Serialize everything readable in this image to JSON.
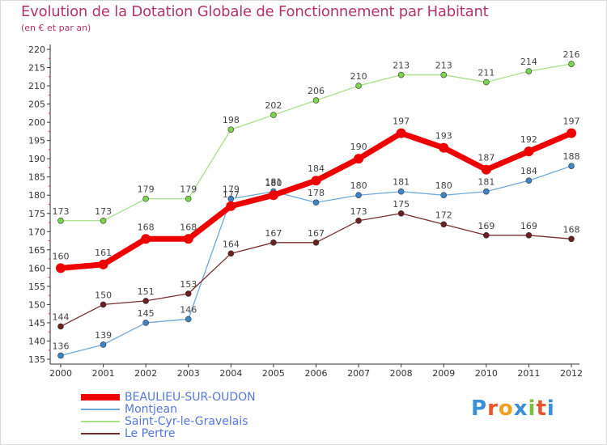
{
  "header": {
    "title": "Evolution de la Dotation Globale de Fonctionnement par Habitant",
    "subtitle": "(en € et par an)"
  },
  "logo": {
    "text": "Proxiti",
    "letters": [
      "P",
      "r",
      "o",
      "x",
      "i",
      "t",
      "i"
    ],
    "colors": [
      "#3b8fd6",
      "#e8552a",
      "#f0a01e",
      "#3b8fd6",
      "#7abf3a",
      "#e8552a",
      "#3b8fd6"
    ]
  },
  "chart_data": {
    "type": "line",
    "title": "Evolution de la Dotation Globale de Fonctionnement par Habitant",
    "subtitle": "(en € et par an)",
    "x": [
      "2000",
      "2001",
      "2002",
      "2003",
      "2004",
      "2005",
      "2006",
      "2007",
      "2008",
      "2009",
      "2010",
      "2011",
      "2012"
    ],
    "ylim": [
      135,
      220
    ],
    "yticks": [
      135,
      140,
      145,
      150,
      155,
      160,
      165,
      170,
      175,
      180,
      185,
      190,
      195,
      200,
      205,
      210,
      215,
      220
    ],
    "grid": false,
    "legend_position": "bottom-left",
    "series": [
      {
        "name": "BEAULIEU-SUR-OUDON",
        "color": "#ee0000",
        "marker": "#ee0000",
        "width": 7,
        "radius": 6,
        "values": [
          160,
          161,
          168,
          168,
          177,
          180,
          184,
          190,
          197,
          193,
          187,
          192,
          197
        ]
      },
      {
        "name": "Montjean",
        "color": "#6fa8dc",
        "marker": "#3d85c6",
        "width": 1.3,
        "radius": 3.5,
        "values": [
          136,
          139,
          145,
          146,
          179,
          181,
          178,
          180,
          181,
          180,
          181,
          184,
          188
        ]
      },
      {
        "name": "Saint-Cyr-le-Gravelais",
        "color": "#a8e08a",
        "marker": "#7cd44a",
        "width": 1.3,
        "radius": 3.5,
        "values": [
          173,
          173,
          179,
          179,
          198,
          202,
          206,
          210,
          213,
          213,
          211,
          214,
          216
        ]
      },
      {
        "name": "Le Pertre",
        "color": "#7a2e2e",
        "marker": "#6b1f1f",
        "width": 1.3,
        "radius": 3.5,
        "values": [
          144,
          150,
          151,
          153,
          164,
          167,
          167,
          173,
          175,
          172,
          169,
          169,
          168
        ]
      }
    ]
  }
}
